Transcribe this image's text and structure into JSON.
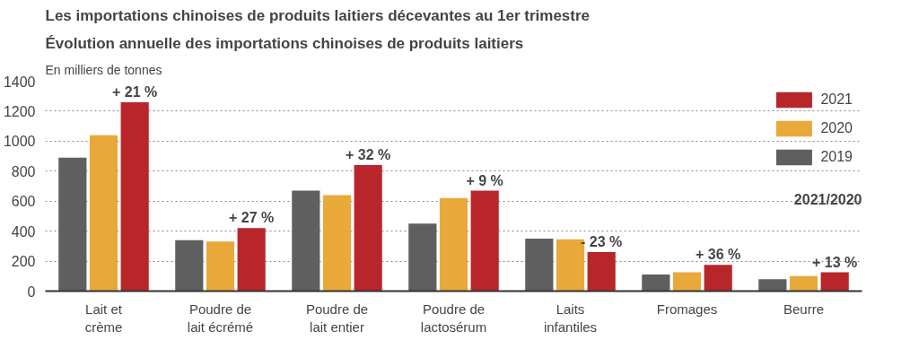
{
  "chart_data": {
    "type": "bar",
    "title": "Les importations chinoises de produits laitiers décevantes au 1er trimestre",
    "subtitle": "Évolution annuelle des importations chinoises de produits laitiers",
    "ylabel": "En milliers de tonnes",
    "categories": [
      "Lait et\ncrème",
      "Poudre de\nlait écrémé",
      "Poudre de\nlait entier",
      "Poudre de\nlactosérum",
      "Laits\ninfantiles",
      "Fromages",
      "Beurre"
    ],
    "series": [
      {
        "name": "2019",
        "color": "#5f5f5f",
        "values": [
          890,
          340,
          670,
          450,
          350,
          110,
          80
        ]
      },
      {
        "name": "2020",
        "color": "#e8a93a",
        "values": [
          1040,
          330,
          640,
          620,
          345,
          125,
          100
        ]
      },
      {
        "name": "2021",
        "color": "#b8262b",
        "values": [
          1260,
          420,
          840,
          670,
          260,
          175,
          125
        ]
      }
    ],
    "ylim": [
      0,
      1400
    ],
    "yticks": [
      0,
      200,
      400,
      600,
      800,
      1000,
      1200,
      1400
    ],
    "grid": "y",
    "legend": "top right",
    "annotations": [
      "+ 21 %",
      "+ 27 %",
      "+ 32 %",
      "+ 9 %",
      "- 23 %",
      "+ 36 %",
      "+ 13 %",
      "2021/2020"
    ]
  }
}
